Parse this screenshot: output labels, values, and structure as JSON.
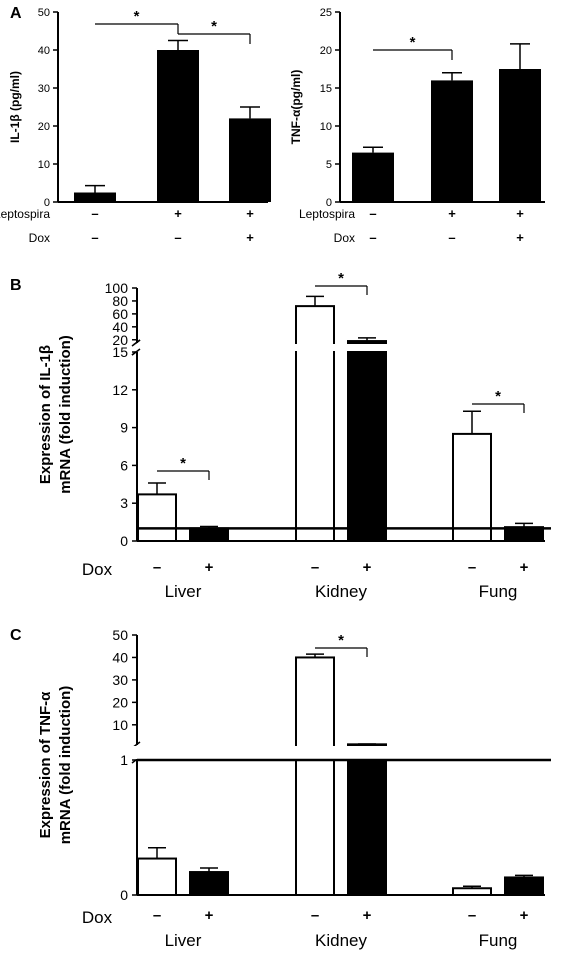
{
  "panels": {
    "a": {
      "label": "A"
    },
    "b": {
      "label": "B"
    },
    "c": {
      "label": "C"
    }
  },
  "chart_data": [
    {
      "id": "A1",
      "type": "bar",
      "ylabel": "IL-1β (pg/ml)",
      "ylim": [
        0,
        50
      ],
      "yticks": [
        0,
        10,
        20,
        30,
        40,
        50
      ],
      "categories": [
        "1",
        "2",
        "3"
      ],
      "values": [
        2.5,
        40,
        22
      ],
      "errors": [
        1.8,
        2.5,
        3
      ],
      "bar_colors": [
        "#000000",
        "#000000",
        "#000000"
      ],
      "significance": [
        {
          "from": 0,
          "to": 1,
          "label": "*"
        },
        {
          "from": 1,
          "to": 2,
          "label": "*"
        }
      ],
      "conditions": [
        {
          "name": "Leptospira",
          "signs": [
            "–",
            "+",
            "+"
          ]
        },
        {
          "name": "Dox",
          "signs": [
            "–",
            "–",
            "+"
          ]
        }
      ]
    },
    {
      "id": "A2",
      "type": "bar",
      "ylabel": "TNF-α(pg/ml)",
      "ylim": [
        0,
        25
      ],
      "yticks": [
        0,
        5,
        10,
        15,
        20,
        25
      ],
      "categories": [
        "1",
        "2",
        "3"
      ],
      "values": [
        6.5,
        16,
        17.5
      ],
      "errors": [
        0.7,
        1,
        3.3
      ],
      "bar_colors": [
        "#000000",
        "#000000",
        "#000000"
      ],
      "significance": [
        {
          "from": 0,
          "to": 1,
          "label": "*"
        }
      ],
      "conditions": [
        {
          "name": "Leptospira",
          "signs": [
            "–",
            "+",
            "+"
          ]
        },
        {
          "name": "Dox",
          "signs": [
            "–",
            "–",
            "+"
          ]
        }
      ]
    },
    {
      "id": "B",
      "type": "bar",
      "ylabel": [
        "Expression of IL-1β",
        "mRNA (fold induction)"
      ],
      "y_axis_break": {
        "lower": [
          0,
          15
        ],
        "upper": [
          15,
          100
        ]
      },
      "yticks_lower": [
        0,
        3,
        6,
        9,
        12,
        15
      ],
      "yticks_upper": [
        20,
        40,
        60,
        80,
        100
      ],
      "reference_line": 1,
      "groups": [
        "Liver",
        "Kidney",
        "Fung"
      ],
      "series": [
        {
          "name": "–",
          "values": [
            3.7,
            72,
            8.5
          ],
          "errors": [
            0.9,
            15,
            1.8
          ],
          "fill": "#ffffff"
        },
        {
          "name": "+",
          "values": [
            1.0,
            18,
            1.1
          ],
          "errors": [
            0.15,
            5,
            0.3
          ],
          "fill": "#000000"
        }
      ],
      "significance": [
        {
          "group": 0,
          "label": "*"
        },
        {
          "group": 1,
          "label": "*"
        },
        {
          "group": 2,
          "label": "*"
        }
      ],
      "condition_name": "Dox"
    },
    {
      "id": "C",
      "type": "bar",
      "ylabel": [
        "Expression of TNF-α",
        "mRNA (fold induction)"
      ],
      "y_axis_break": {
        "lower": [
          0,
          1
        ],
        "upper": [
          1,
          50
        ]
      },
      "yticks_lower": [
        0,
        1
      ],
      "yticks_upper": [
        10,
        20,
        30,
        40,
        50
      ],
      "reference_line": 1,
      "groups": [
        "Liver",
        "Kidney",
        "Fung"
      ],
      "series": [
        {
          "name": "–",
          "values": [
            0.27,
            40,
            0.05
          ],
          "errors": [
            0.08,
            1.5,
            0.015
          ],
          "fill": "#ffffff"
        },
        {
          "name": "+",
          "values": [
            0.17,
            1.3,
            0.13
          ],
          "errors": [
            0.03,
            0.15,
            0.015
          ],
          "fill": "#000000"
        }
      ],
      "significance": [
        {
          "group": 1,
          "label": "*"
        }
      ],
      "condition_name": "Dox"
    }
  ]
}
